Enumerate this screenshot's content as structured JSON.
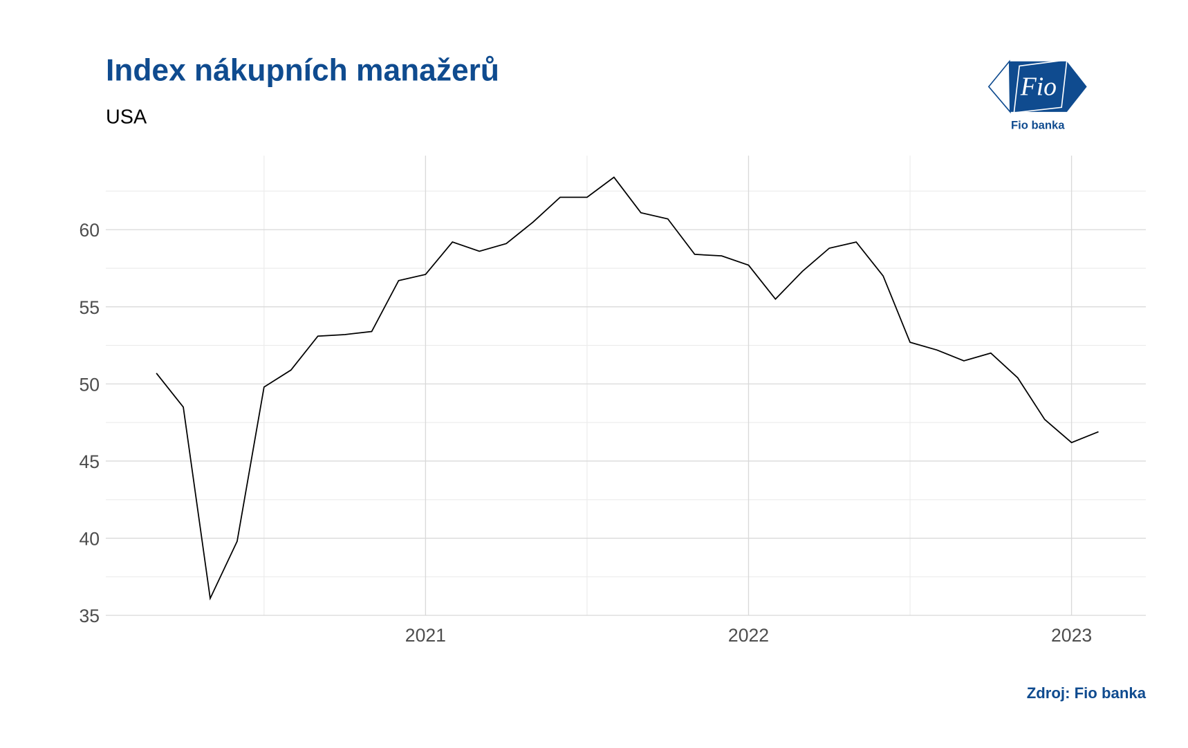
{
  "chart_data": {
    "type": "line",
    "title": "Index nákupních manažerů",
    "subtitle": "USA",
    "source": "Zdroj: Fio banka",
    "x": [
      2020.1667,
      2020.25,
      2020.3333,
      2020.4167,
      2020.5,
      2020.5833,
      2020.6667,
      2020.75,
      2020.8333,
      2020.9167,
      2021.0,
      2021.0833,
      2021.1667,
      2021.25,
      2021.3333,
      2021.4167,
      2021.5,
      2021.5833,
      2021.6667,
      2021.75,
      2021.8333,
      2021.9167,
      2022.0,
      2022.0833,
      2022.1667,
      2022.25,
      2022.3333,
      2022.4167,
      2022.5,
      2022.5833,
      2022.6667,
      2022.75,
      2022.8333,
      2022.9167,
      2023.0,
      2023.0833
    ],
    "series": [
      {
        "color": "#000000",
        "values": [
          50.7,
          48.5,
          36.1,
          39.8,
          49.8,
          50.9,
          53.1,
          53.2,
          53.4,
          56.7,
          57.1,
          59.2,
          58.6,
          59.1,
          60.5,
          62.1,
          62.1,
          63.4,
          61.1,
          60.7,
          58.4,
          58.3,
          57.7,
          55.5,
          57.3,
          58.8,
          59.2,
          57.0,
          52.7,
          52.2,
          51.5,
          52.0,
          50.4,
          47.7,
          46.2,
          46.9
        ]
      }
    ],
    "xlim": [
      2020.01,
      2023.23
    ],
    "xticks": [
      2021,
      2022,
      2023
    ],
    "ylim": [
      35,
      64.8
    ],
    "yticks": [
      35,
      40,
      45,
      50,
      55,
      60
    ],
    "grid": true,
    "minor_grid": true
  },
  "logo": {
    "mark": "Fio",
    "name": "Fio banka"
  }
}
